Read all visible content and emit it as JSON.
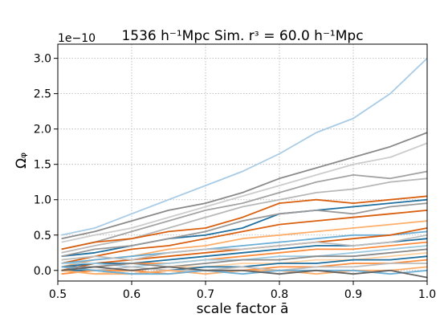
{
  "chart_data": {
    "type": "line",
    "title": "1536 h⁻¹Mpc Sim. rᶟ = 60.0 h⁻¹Mpc",
    "xlabel": "scale factor ā",
    "ylabel": "Ωᵩ",
    "y_offset_text": "1e−10",
    "xlim": [
      0.5,
      1.0
    ],
    "ylim": [
      -0.15,
      3.2
    ],
    "xticks": [
      "0.5",
      "0.6",
      "0.7",
      "0.8",
      "0.9",
      "1.0"
    ],
    "yticks": [
      "0.0",
      "0.5",
      "1.0",
      "1.5",
      "2.0",
      "2.5",
      "3.0"
    ],
    "grid": true,
    "x": [
      0.505,
      0.55,
      0.6,
      0.65,
      0.7,
      0.75,
      0.8,
      0.85,
      0.9,
      0.95,
      1.0
    ],
    "series": [
      {
        "color": "#a8cbe6",
        "values": [
          0.5,
          0.6,
          0.8,
          1.0,
          1.2,
          1.4,
          1.65,
          1.95,
          2.15,
          2.5,
          3.0
        ]
      },
      {
        "color": "#8a8a8a",
        "values": [
          0.45,
          0.55,
          0.7,
          0.85,
          0.95,
          1.1,
          1.3,
          1.45,
          1.6,
          1.75,
          1.95
        ]
      },
      {
        "color": "#cccccc",
        "values": [
          0.4,
          0.5,
          0.6,
          0.75,
          0.9,
          1.05,
          1.2,
          1.35,
          1.5,
          1.6,
          1.8
        ]
      },
      {
        "color": "#a3a3a3",
        "values": [
          0.3,
          0.4,
          0.55,
          0.7,
          0.85,
          0.95,
          1.1,
          1.25,
          1.35,
          1.3,
          1.4
        ]
      },
      {
        "color": "#b8b8b8",
        "values": [
          0.25,
          0.35,
          0.45,
          0.6,
          0.75,
          0.9,
          1.0,
          1.1,
          1.15,
          1.25,
          1.3
        ]
      },
      {
        "color": "#d95f0e",
        "values": [
          0.3,
          0.4,
          0.45,
          0.55,
          0.6,
          0.75,
          0.95,
          1.0,
          0.95,
          1.0,
          1.05
        ]
      },
      {
        "color": "#1f6f9f",
        "values": [
          0.2,
          0.25,
          0.35,
          0.45,
          0.5,
          0.6,
          0.8,
          0.85,
          0.9,
          0.95,
          1.0
        ]
      },
      {
        "color": "#999999",
        "values": [
          0.2,
          0.3,
          0.35,
          0.45,
          0.55,
          0.7,
          0.8,
          0.85,
          0.8,
          0.9,
          0.95
        ]
      },
      {
        "color": "#d95f0e",
        "values": [
          0.1,
          0.2,
          0.3,
          0.35,
          0.45,
          0.55,
          0.65,
          0.7,
          0.75,
          0.8,
          0.85
        ]
      },
      {
        "color": "#fdae6b",
        "values": [
          0.05,
          0.15,
          0.2,
          0.3,
          0.35,
          0.45,
          0.5,
          0.55,
          0.6,
          0.65,
          0.7
        ]
      },
      {
        "color": "#6baed6",
        "values": [
          0.1,
          0.15,
          0.2,
          0.25,
          0.3,
          0.35,
          0.4,
          0.45,
          0.5,
          0.5,
          0.55
        ]
      },
      {
        "color": "#d95f0e",
        "values": [
          0.0,
          0.1,
          0.15,
          0.2,
          0.25,
          0.3,
          0.35,
          0.4,
          0.45,
          0.5,
          0.6
        ]
      },
      {
        "color": "#1f6f9f",
        "values": [
          0.05,
          0.1,
          0.1,
          0.15,
          0.2,
          0.25,
          0.3,
          0.35,
          0.35,
          0.4,
          0.45
        ]
      },
      {
        "color": "#bdbdbd",
        "values": [
          0.15,
          0.2,
          0.15,
          0.25,
          0.3,
          0.3,
          0.35,
          0.4,
          0.35,
          0.4,
          0.5
        ]
      },
      {
        "color": "#fd8d3c",
        "values": [
          0.0,
          0.05,
          0.1,
          0.1,
          0.15,
          0.2,
          0.25,
          0.3,
          0.3,
          0.35,
          0.4
        ]
      },
      {
        "color": "#9ecae1",
        "values": [
          0.1,
          0.1,
          0.05,
          0.1,
          0.15,
          0.15,
          0.2,
          0.2,
          0.25,
          0.3,
          0.35
        ]
      },
      {
        "color": "#8a8a8a",
        "values": [
          0.05,
          0.05,
          0.1,
          0.05,
          0.1,
          0.15,
          0.15,
          0.2,
          0.2,
          0.25,
          0.3
        ]
      },
      {
        "color": "#fdd0a2",
        "values": [
          0.0,
          -0.05,
          0.0,
          0.05,
          0.05,
          0.1,
          0.1,
          0.15,
          0.15,
          0.2,
          0.25
        ]
      },
      {
        "color": "#1f6f9f",
        "values": [
          0.0,
          0.0,
          -0.05,
          0.0,
          0.05,
          0.05,
          0.1,
          0.1,
          0.15,
          0.15,
          0.2
        ]
      },
      {
        "color": "#fd8d3c",
        "values": [
          -0.05,
          0.0,
          0.0,
          -0.05,
          0.0,
          0.0,
          0.05,
          0.05,
          0.1,
          0.1,
          0.15
        ]
      },
      {
        "color": "#bdbdbd",
        "values": [
          0.05,
          0.0,
          0.05,
          0.0,
          0.0,
          0.05,
          0.0,
          0.05,
          0.05,
          0.1,
          0.1
        ]
      },
      {
        "color": "#fdae6b",
        "values": [
          0.0,
          -0.05,
          -0.05,
          0.0,
          -0.05,
          0.0,
          0.0,
          -0.05,
          0.0,
          0.0,
          0.05
        ]
      },
      {
        "color": "#6baed6",
        "values": [
          0.05,
          0.0,
          -0.05,
          -0.05,
          0.0,
          -0.05,
          0.0,
          0.0,
          0.0,
          -0.05,
          0.0
        ]
      },
      {
        "color": "#636363",
        "values": [
          0.0,
          0.05,
          0.0,
          0.05,
          0.0,
          0.0,
          -0.05,
          0.0,
          -0.05,
          0.0,
          -0.1
        ]
      }
    ]
  }
}
